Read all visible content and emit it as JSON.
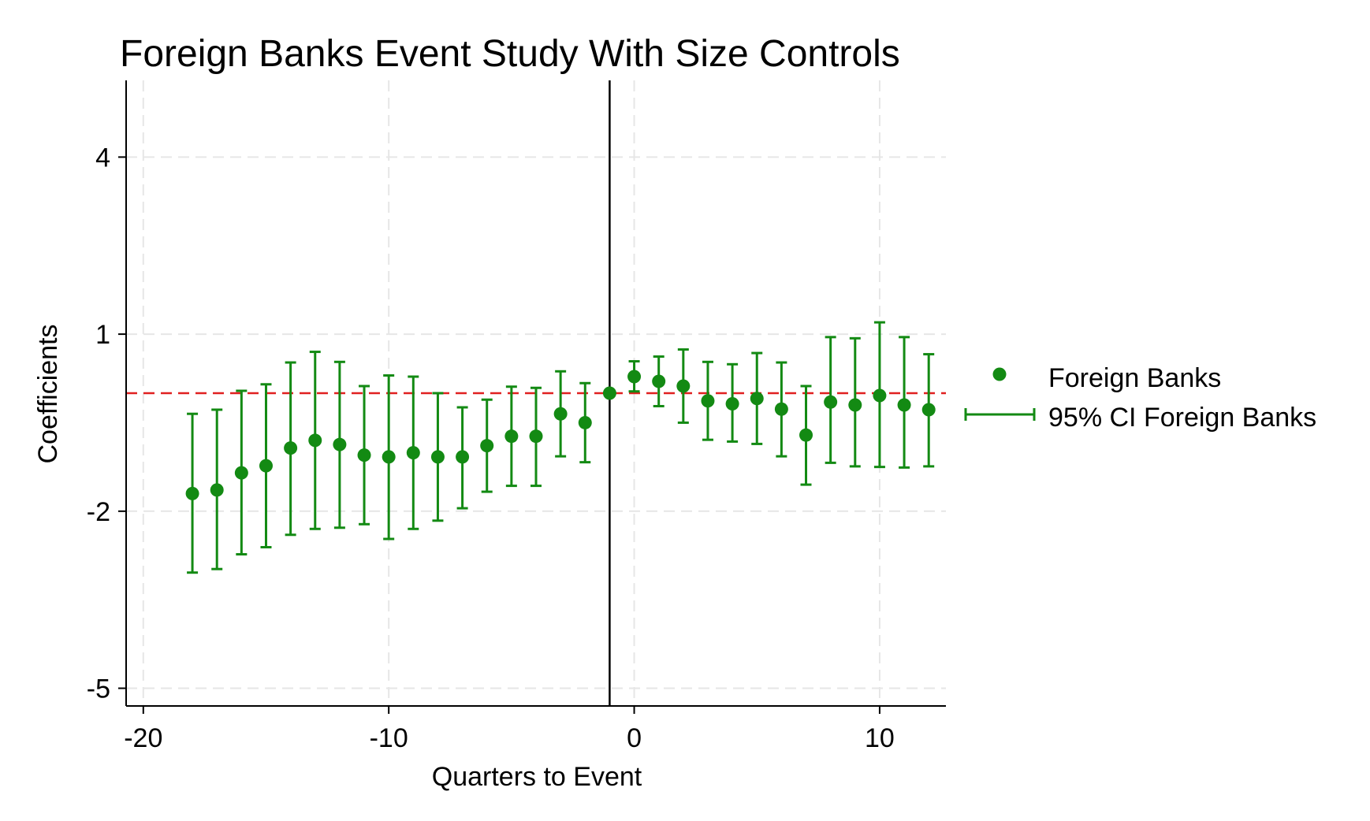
{
  "chart_data": {
    "type": "scatter",
    "title": "Foreign Banks Event Study With Size Controls",
    "xlabel": "Quarters to Event",
    "ylabel": "Coefficients",
    "xlim": [
      -20.7,
      12.7
    ],
    "ylim": [
      -5.3,
      5.3
    ],
    "x_ticks": [
      -20,
      -10,
      0,
      10
    ],
    "x_tick_labels": [
      "-20",
      "-10",
      "0",
      "10"
    ],
    "y_ticks": [
      4,
      1,
      -2,
      -5
    ],
    "y_tick_labels": [
      "4",
      "1",
      "-2",
      "-5"
    ],
    "grid": true,
    "legend_position": "right",
    "reference_lines": {
      "vertical_x": -1,
      "horizontal_y": 0,
      "horizontal_color": "#e02020",
      "vertical_color": "#000000"
    },
    "series": [
      {
        "name": "Foreign Banks",
        "kind": "points",
        "color": "#138a13",
        "x": [
          -18,
          -17,
          -16,
          -15,
          -14,
          -13,
          -12,
          -11,
          -10,
          -9,
          -8,
          -7,
          -6,
          -5,
          -4,
          -3,
          -2,
          -1,
          0,
          1,
          2,
          3,
          4,
          5,
          6,
          7,
          8,
          9,
          10,
          11,
          12
        ],
        "values": [
          -1.7,
          -1.64,
          -1.35,
          -1.23,
          -0.93,
          -0.8,
          -0.87,
          -1.05,
          -1.08,
          -1.01,
          -1.08,
          -1.08,
          -0.89,
          -0.73,
          -0.73,
          -0.35,
          -0.5,
          0.0,
          0.28,
          0.2,
          0.12,
          -0.13,
          -0.18,
          -0.09,
          -0.27,
          -0.71,
          -0.15,
          -0.2,
          -0.04,
          -0.2,
          -0.28
        ]
      },
      {
        "name": "95% CI Foreign Banks",
        "kind": "errorbars",
        "color": "#138a13",
        "x": [
          -18,
          -17,
          -16,
          -15,
          -14,
          -13,
          -12,
          -11,
          -10,
          -9,
          -8,
          -7,
          -6,
          -5,
          -4,
          -3,
          -2,
          -1,
          0,
          1,
          2,
          3,
          4,
          5,
          6,
          7,
          8,
          9,
          10,
          11,
          12
        ],
        "lower": [
          -3.04,
          -2.98,
          -2.73,
          -2.61,
          -2.4,
          -2.3,
          -2.28,
          -2.22,
          -2.47,
          -2.3,
          -2.16,
          -1.95,
          -1.67,
          -1.57,
          -1.57,
          -1.07,
          -1.17,
          0.0,
          0.03,
          -0.22,
          -0.5,
          -0.79,
          -0.82,
          -0.86,
          -1.07,
          -1.55,
          -1.18,
          -1.24,
          -1.25,
          -1.26,
          -1.24
        ],
        "upper": [
          -0.35,
          -0.28,
          0.04,
          0.15,
          0.52,
          0.7,
          0.53,
          0.12,
          0.3,
          0.28,
          0.0,
          -0.24,
          -0.11,
          0.11,
          0.09,
          0.37,
          0.17,
          0.0,
          0.54,
          0.62,
          0.74,
          0.53,
          0.49,
          0.68,
          0.52,
          0.12,
          0.95,
          0.93,
          1.2,
          0.95,
          0.66
        ]
      }
    ]
  }
}
